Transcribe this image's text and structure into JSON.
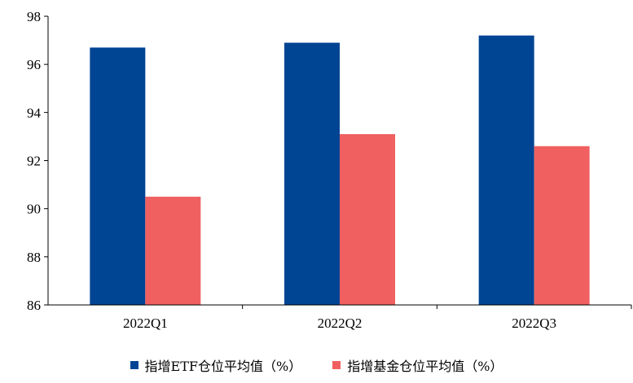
{
  "chart_data": {
    "type": "bar",
    "categories": [
      "2022Q1",
      "2022Q2",
      "2022Q3"
    ],
    "series": [
      {
        "name": "指增ETF仓位平均值（%）",
        "values": [
          96.7,
          96.9,
          97.2
        ],
        "color": "#004494"
      },
      {
        "name": "指增基金仓位平均值（%）",
        "values": [
          90.5,
          93.1,
          92.6
        ],
        "color": "#f06060"
      }
    ],
    "title": "",
    "xlabel": "",
    "ylabel": "",
    "ylim": [
      86,
      98
    ],
    "yticks": [
      "86",
      "88",
      "90",
      "92",
      "94",
      "96",
      "98"
    ],
    "grid": false,
    "legend_position": "bottom"
  }
}
